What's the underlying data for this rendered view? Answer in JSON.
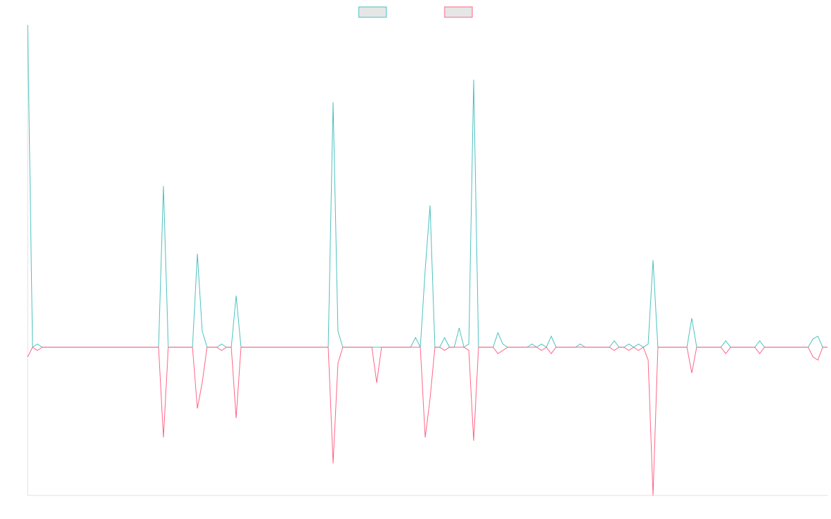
{
  "chart_data": {
    "type": "line",
    "categories": [
      null,
      null,
      null,
      null,
      null,
      null,
      null,
      null,
      null,
      null,
      null,
      null,
      null,
      null,
      null,
      null,
      null,
      null,
      null,
      null,
      null,
      null,
      null,
      null,
      null,
      null,
      null,
      null,
      null,
      null,
      null,
      null,
      null,
      null,
      null,
      null,
      null,
      null,
      null,
      null,
      null,
      null,
      null,
      null,
      null,
      null,
      null,
      null,
      null,
      null,
      null,
      null,
      null,
      null,
      null,
      null,
      null,
      null,
      null,
      null,
      null,
      null,
      null,
      null,
      null,
      null,
      null,
      null,
      null,
      null,
      null,
      null,
      null,
      null,
      null,
      null,
      null,
      null,
      null,
      null,
      null,
      null,
      null,
      null,
      null,
      null,
      null,
      null,
      null,
      null,
      null,
      null,
      null,
      null,
      null,
      null,
      null,
      null,
      null,
      null,
      null,
      null,
      null,
      null,
      null,
      null,
      null,
      null,
      null,
      null,
      null,
      null,
      null,
      null,
      null,
      null,
      null,
      null,
      null,
      null,
      null,
      null,
      null,
      null,
      null,
      null,
      null,
      null,
      null,
      null,
      null,
      null,
      null,
      null,
      null,
      null,
      null,
      null,
      null,
      null,
      null,
      null,
      null,
      null,
      null,
      null,
      null,
      null,
      null,
      null,
      null,
      null,
      null,
      null,
      null,
      null,
      null,
      null,
      null,
      null,
      null,
      null,
      null,
      null,
      null,
      null
    ],
    "series": [
      {
        "color": "#4bc0c0",
        "values": [
          100,
          0,
          1,
          0,
          0,
          0,
          0,
          0,
          0,
          0,
          0,
          0,
          0,
          0,
          0,
          0,
          0,
          0,
          0,
          0,
          0,
          0,
          0,
          0,
          0,
          0,
          0,
          0,
          50,
          0,
          0,
          0,
          0,
          0,
          0,
          29,
          5,
          0,
          0,
          0,
          1,
          0,
          0,
          16,
          0,
          0,
          0,
          0,
          0,
          0,
          0,
          0,
          0,
          0,
          0,
          0,
          0,
          0,
          0,
          0,
          0,
          0,
          0,
          76,
          5,
          0,
          0,
          0,
          0,
          0,
          0,
          0,
          0,
          0,
          0,
          0,
          0,
          0,
          0,
          0,
          3,
          0,
          24,
          44,
          0,
          0,
          3,
          0,
          0,
          6,
          0,
          1,
          83,
          0,
          0,
          0,
          0,
          4.5,
          1,
          0,
          0,
          0,
          0,
          0,
          1,
          0,
          1,
          0,
          3.4,
          0,
          0,
          0,
          0,
          0,
          1,
          0,
          0,
          0,
          0,
          0,
          0,
          2,
          0,
          0,
          1,
          0,
          1,
          0,
          1,
          27,
          0,
          0,
          0,
          0,
          0,
          0,
          0,
          9,
          0,
          0,
          0,
          0,
          0,
          0,
          2,
          0,
          0,
          0,
          0,
          0,
          0,
          2,
          0,
          0,
          0,
          0,
          0,
          0,
          0,
          0,
          0,
          0,
          2.6,
          3.4,
          0,
          0
        ]
      },
      {
        "color": "#ff6384",
        "values": [
          -3,
          0,
          -1,
          0,
          0,
          0,
          0,
          0,
          0,
          0,
          0,
          0,
          0,
          0,
          0,
          0,
          0,
          0,
          0,
          0,
          0,
          0,
          0,
          0,
          0,
          0,
          0,
          0,
          -28,
          0,
          0,
          0,
          0,
          0,
          0,
          -19,
          -11,
          0,
          0,
          0,
          -1,
          0,
          0,
          -22,
          0,
          0,
          0,
          0,
          0,
          0,
          0,
          0,
          0,
          0,
          0,
          0,
          0,
          0,
          0,
          0,
          0,
          0,
          0,
          -36,
          -5,
          0,
          0,
          0,
          0,
          0,
          0,
          0,
          -11,
          0,
          0,
          0,
          0,
          0,
          0,
          0,
          0,
          0,
          -28,
          -16,
          0,
          0,
          -1,
          0,
          0,
          0,
          0,
          -1,
          -29,
          0,
          0,
          0,
          0,
          -2,
          -1,
          0,
          0,
          0,
          0,
          0,
          0,
          0,
          -1,
          0,
          -2,
          0,
          0,
          0,
          0,
          0,
          0,
          0,
          0,
          0,
          0,
          0,
          0,
          -1,
          0,
          0,
          -1,
          0,
          -1,
          0,
          -4,
          -46,
          0,
          0,
          0,
          0,
          0,
          0,
          0,
          -8,
          0,
          0,
          0,
          0,
          0,
          0,
          -2,
          0,
          0,
          0,
          0,
          0,
          0,
          -2,
          0,
          0,
          0,
          0,
          0,
          0,
          0,
          0,
          0,
          0,
          -3,
          -4,
          0,
          0
        ]
      }
    ],
    "ylim": [
      -46,
      100
    ],
    "legend": "top"
  }
}
